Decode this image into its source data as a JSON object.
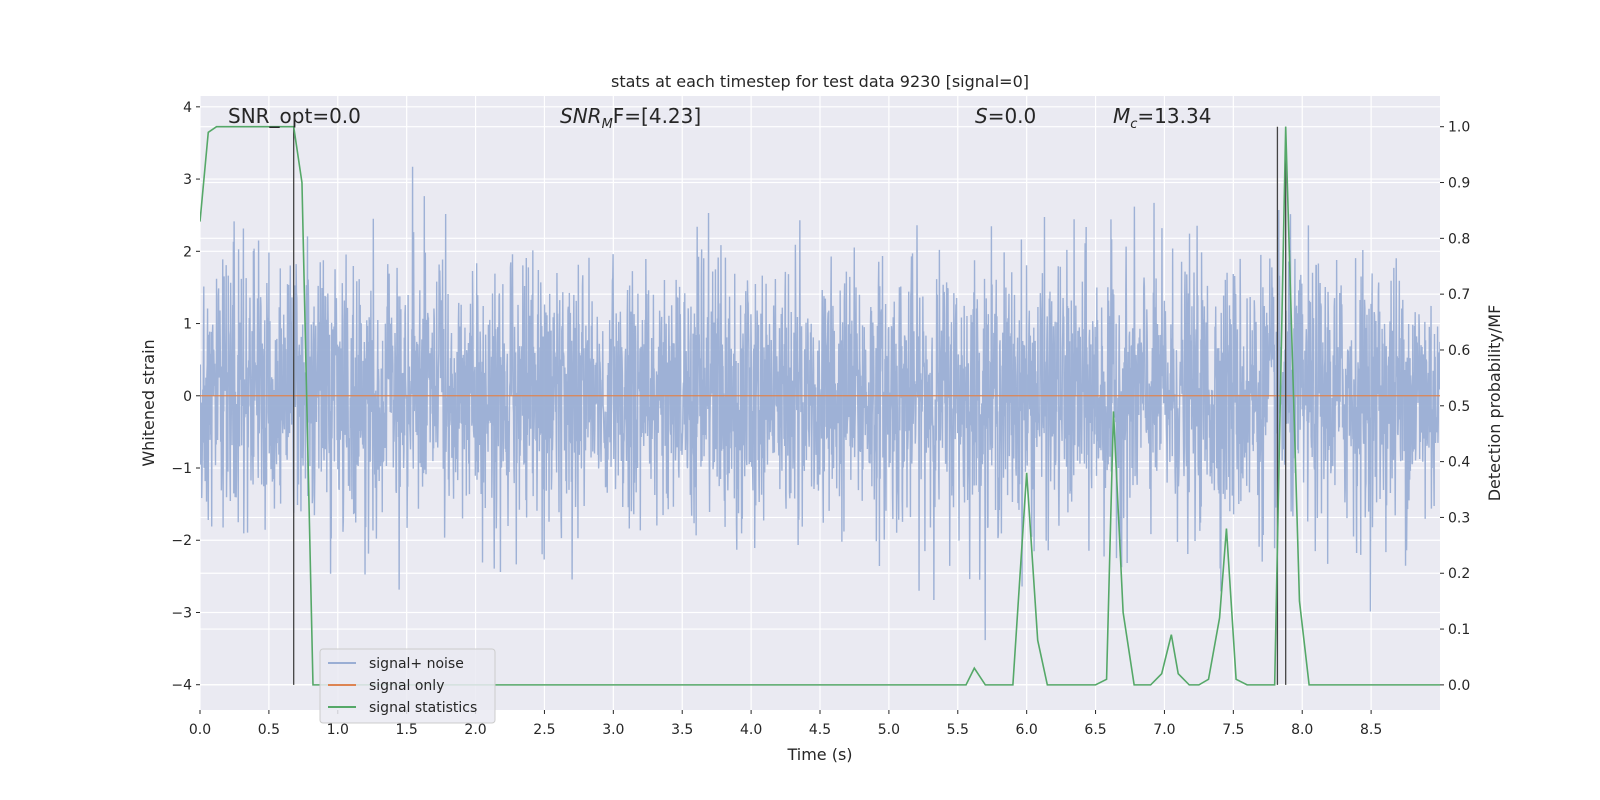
{
  "chart_data": {
    "type": "line",
    "title": "stats at each timestep for test data 9230 [signal=0]",
    "xlabel": "Time (s)",
    "ylabel_left": "Whitened strain",
    "ylabel_right": "Detection probability/MF",
    "xlim": [
      0.0,
      9.0
    ],
    "ylim_left": [
      -4.35,
      4.15
    ],
    "ylim_right": [
      -0.045,
      1.055
    ],
    "xticks": [
      0.0,
      0.5,
      1.0,
      1.5,
      2.0,
      2.5,
      3.0,
      3.5,
      4.0,
      4.5,
      5.0,
      5.5,
      6.0,
      6.5,
      7.0,
      7.5,
      8.0,
      8.5
    ],
    "xtick_labels": [
      "0.0",
      "0.5",
      "1.0",
      "1.5",
      "2.0",
      "2.5",
      "3.0",
      "3.5",
      "4.0",
      "4.5",
      "5.0",
      "5.5",
      "6.0",
      "6.5",
      "7.0",
      "7.5",
      "8.0",
      "8.5"
    ],
    "yticks_left": [
      -4,
      -3,
      -2,
      -1,
      0,
      1,
      2,
      3,
      4
    ],
    "ytick_labels_left": [
      "−4",
      "−3",
      "−2",
      "−1",
      "0",
      "1",
      "2",
      "3",
      "4"
    ],
    "yticks_right": [
      0.0,
      0.1,
      0.2,
      0.3,
      0.4,
      0.5,
      0.6,
      0.7,
      0.8,
      0.9,
      1.0
    ],
    "ytick_labels_right": [
      "0.0",
      "0.1",
      "0.2",
      "0.3",
      "0.4",
      "0.5",
      "0.6",
      "0.7",
      "0.8",
      "0.9",
      "1.0"
    ],
    "grid": true,
    "legend_location": "lower-left",
    "annotations": [
      "SNR_opt=0.0",
      "SNR",
      "M",
      "F=[4.23]",
      "S",
      "=0.0",
      "M",
      "c",
      "=13.34"
    ],
    "series": [
      {
        "name": "signal+ noise",
        "axis": "left",
        "color": "#9aaed4",
        "kind": "noise",
        "samples": 3600,
        "envelope_sigma": 0.9,
        "visible_max": 3.32,
        "visible_min": -3.5
      },
      {
        "name": "signal only",
        "axis": "left",
        "color": "#dd8452",
        "x": [
          0.0,
          9.0
        ],
        "y": [
          0.0,
          0.0
        ]
      },
      {
        "name": "signal statistics",
        "axis": "right",
        "color": "#55a868",
        "x": [
          0.0,
          0.06,
          0.12,
          0.2,
          0.3,
          0.4,
          0.5,
          0.6,
          0.68,
          0.74,
          0.82,
          2.85,
          2.9,
          5.48,
          5.56,
          5.62,
          5.7,
          5.78,
          5.9,
          6.0,
          6.08,
          6.15,
          6.3,
          6.5,
          6.58,
          6.63,
          6.7,
          6.78,
          6.9,
          6.98,
          7.05,
          7.1,
          7.18,
          7.25,
          7.32,
          7.4,
          7.45,
          7.52,
          7.6,
          7.7,
          7.8,
          7.88,
          7.98,
          8.05,
          8.15,
          9.0
        ],
        "y": [
          0.83,
          0.99,
          1.0,
          1.0,
          1.0,
          1.0,
          1.0,
          1.0,
          1.0,
          0.9,
          0.0,
          0.0,
          0.0,
          0.0,
          0.0,
          0.03,
          0.0,
          0.0,
          0.0,
          0.38,
          0.08,
          0.0,
          0.0,
          0.0,
          0.01,
          0.49,
          0.13,
          0.0,
          0.0,
          0.02,
          0.09,
          0.02,
          0.0,
          0.0,
          0.01,
          0.12,
          0.28,
          0.01,
          0.0,
          0.0,
          0.0,
          1.0,
          0.15,
          0.0,
          0.0,
          0.0
        ]
      }
    ],
    "vlines": [
      {
        "x": 0.68,
        "ymin": 0.0,
        "ymax": 1.0,
        "color": "#444444"
      },
      {
        "x": 7.82,
        "ymin": 0.0,
        "ymax": 1.0,
        "color": "#444444"
      },
      {
        "x": 7.88,
        "ymin": 0.0,
        "ymax": 1.0,
        "color": "#444444"
      }
    ]
  },
  "legend": {
    "items": [
      {
        "label": "signal+ noise",
        "color": "#9aaed4"
      },
      {
        "label": "signal only",
        "color": "#dd8452"
      },
      {
        "label": "signal statistics",
        "color": "#55a868"
      }
    ]
  }
}
